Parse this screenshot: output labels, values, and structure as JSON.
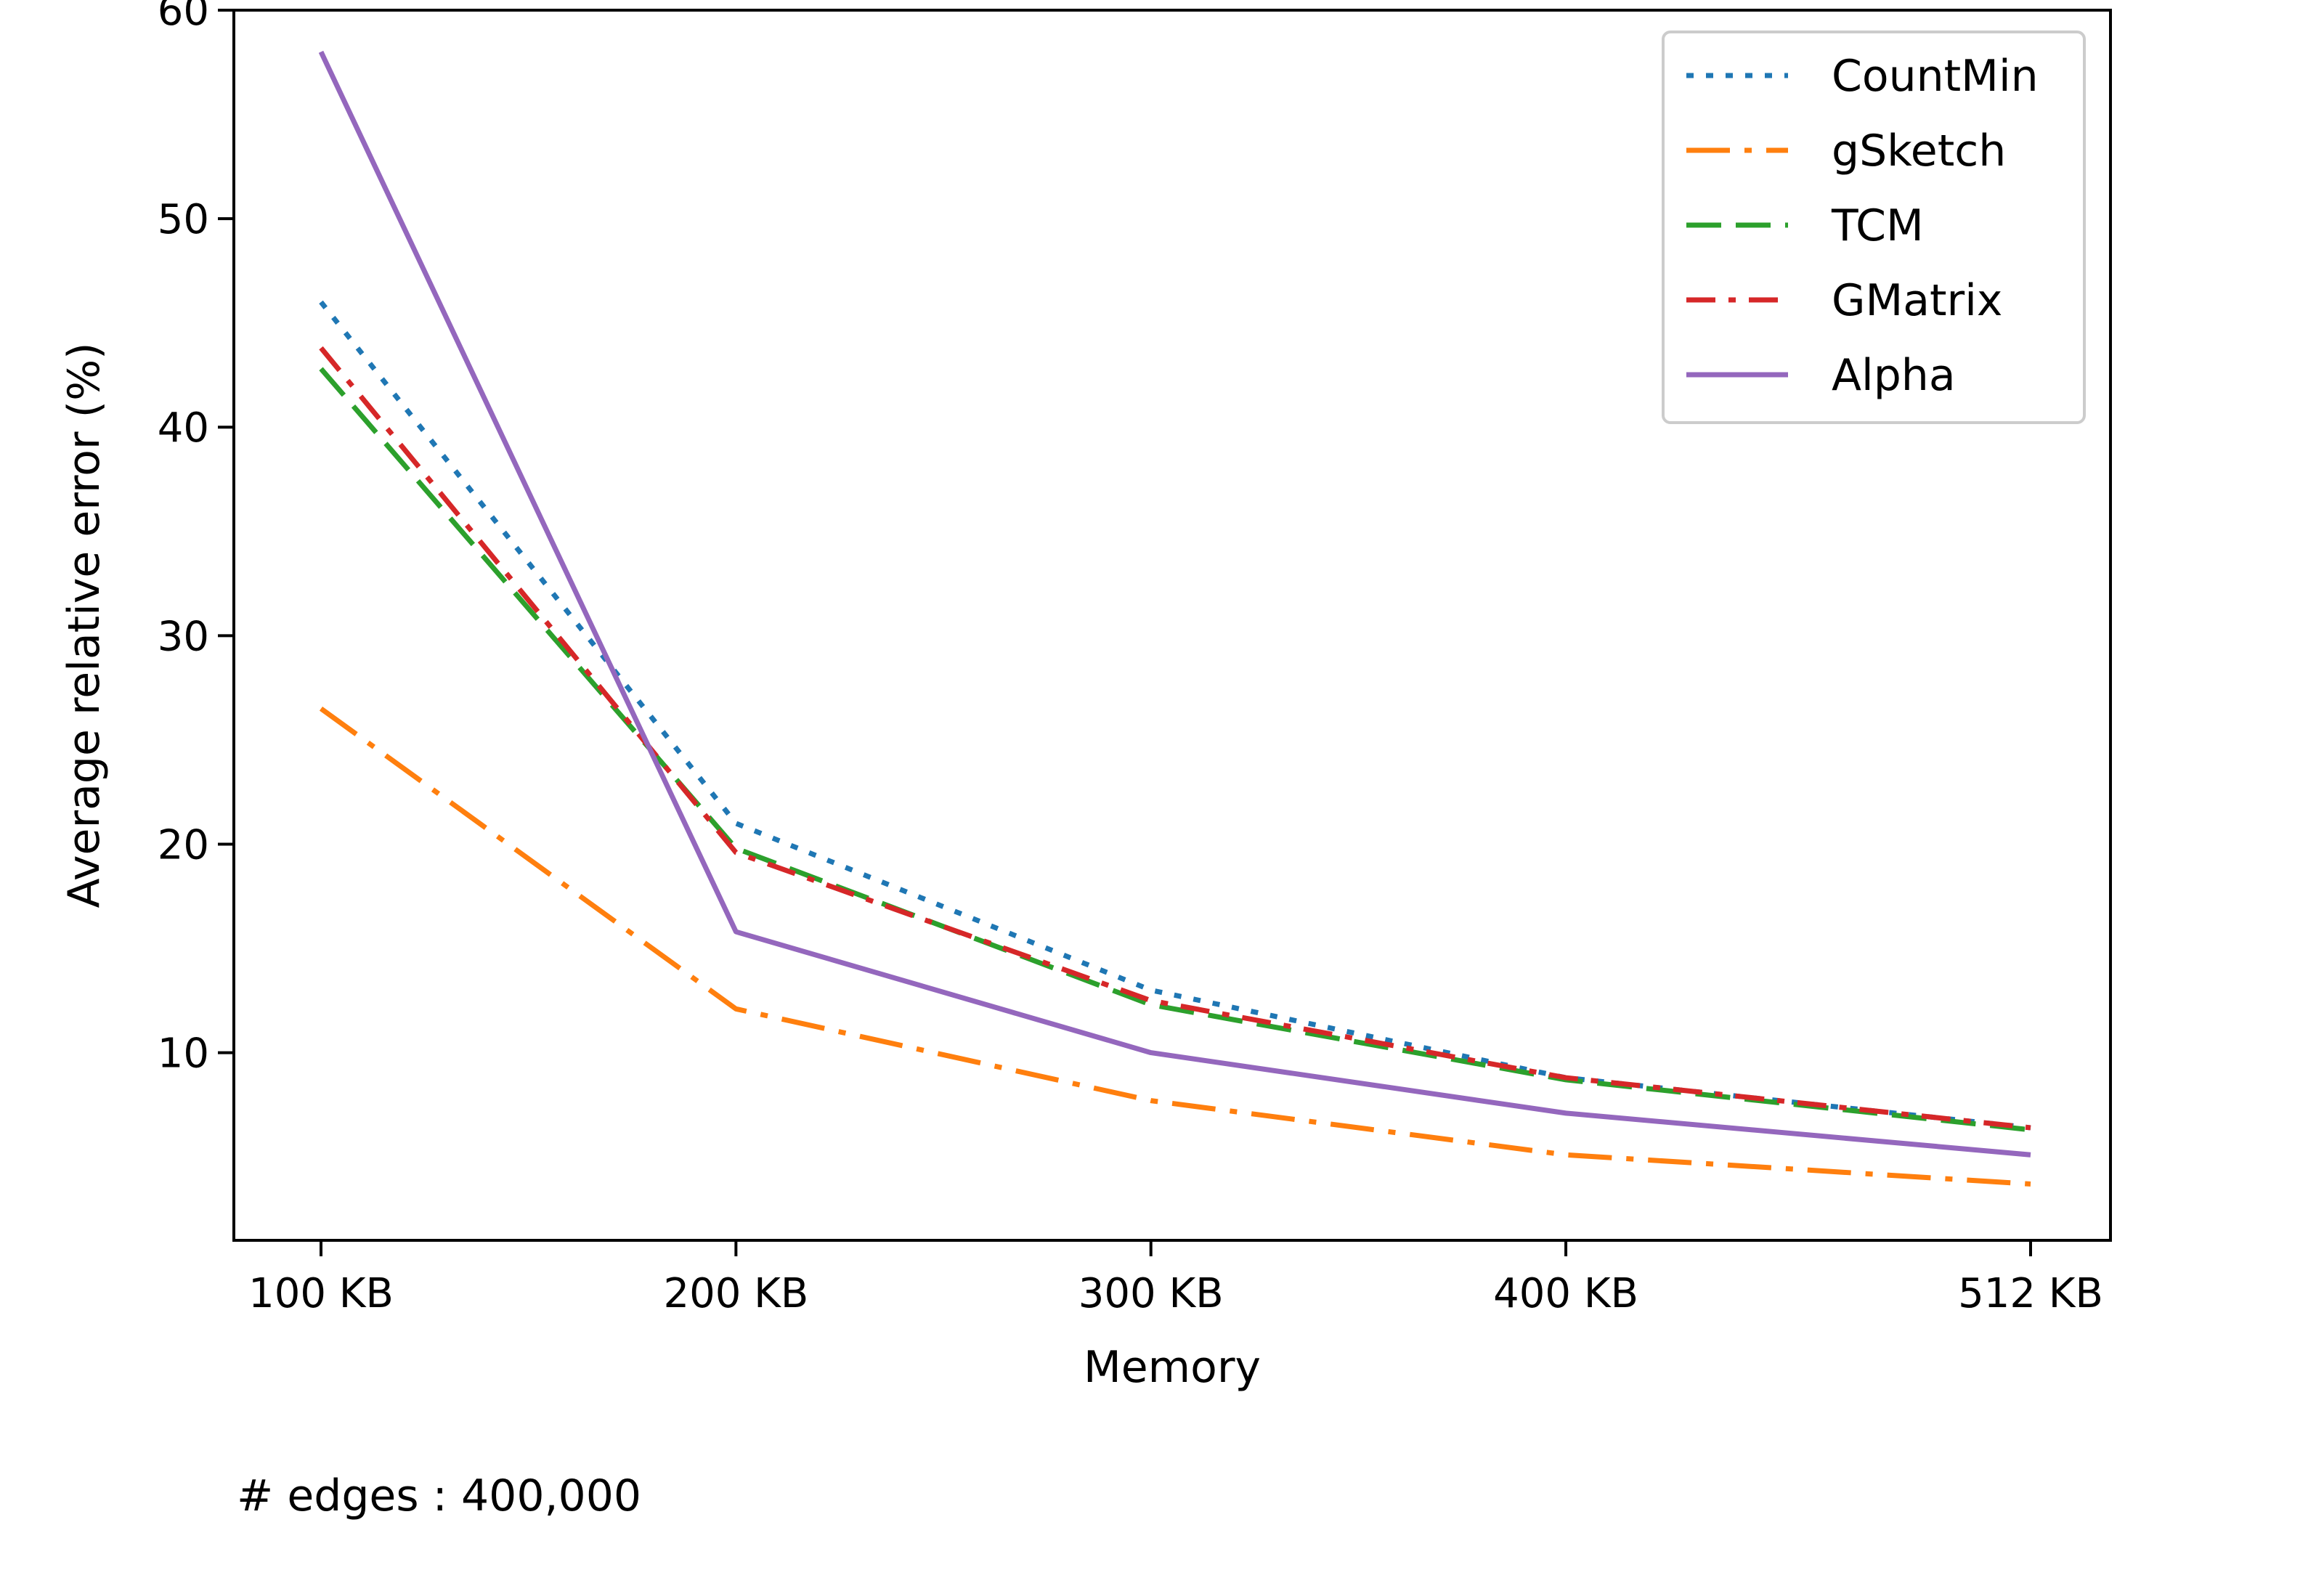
{
  "chart_data": {
    "type": "line",
    "title": "",
    "xlabel": "Memory",
    "ylabel": "Average relative error (%)",
    "categories": [
      "100 KB",
      "200 KB",
      "300 KB",
      "400 KB",
      "512 KB"
    ],
    "x": [
      100,
      200,
      300,
      400,
      512
    ],
    "ylim": [
      1,
      60
    ],
    "yticks": [
      10,
      20,
      30,
      40,
      50,
      60
    ],
    "grid": false,
    "legend_position": "top-right",
    "series": [
      {
        "name": "CountMin",
        "color": "#1f77b4",
        "style": "dotted",
        "values": [
          46.0,
          21.0,
          13.0,
          8.8,
          6.4
        ]
      },
      {
        "name": "gSketch",
        "color": "#ff7f0e",
        "style": "dashdot",
        "values": [
          26.5,
          12.1,
          7.7,
          5.1,
          3.7
        ]
      },
      {
        "name": "TCM",
        "color": "#2ca02c",
        "style": "dashed",
        "values": [
          42.8,
          19.8,
          12.3,
          8.7,
          6.3
        ]
      },
      {
        "name": "GMatrix",
        "color": "#d62728",
        "style": "dashdotdot",
        "values": [
          43.8,
          19.6,
          12.5,
          8.8,
          6.4
        ]
      },
      {
        "name": "Alpha",
        "color": "#9467bd",
        "style": "solid",
        "values": [
          58.0,
          15.8,
          10.0,
          7.1,
          5.1
        ]
      }
    ],
    "annotation": "# edges : 400,000"
  }
}
